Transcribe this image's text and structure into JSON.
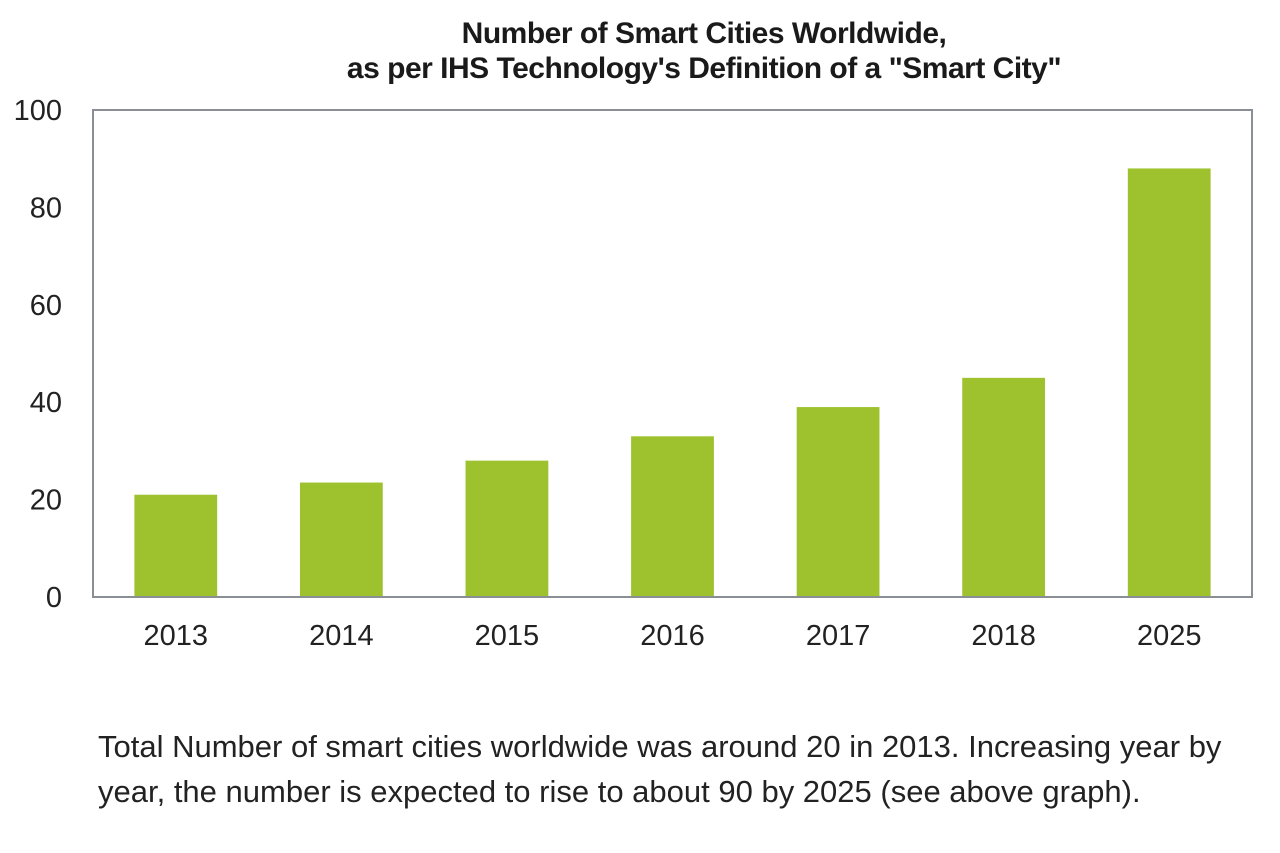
{
  "chart_data": {
    "type": "bar",
    "title": "Number of Smart Cities Worldwide,",
    "subtitle": "as per IHS Technology's Definition of a \"Smart City\"",
    "xlabel": "",
    "ylabel": "",
    "categories": [
      "2013",
      "2014",
      "2015",
      "2016",
      "2017",
      "2018",
      "2025"
    ],
    "values": [
      21,
      23.5,
      28,
      33,
      39,
      45,
      88
    ],
    "ylim": [
      0,
      100
    ],
    "yticks": [
      0,
      20,
      40,
      60,
      80,
      100
    ],
    "grid": false,
    "legend": "none",
    "bar_color": "#9dc22d",
    "axis_color": "#8a8f95"
  },
  "caption": "Total Number of smart cities worldwide was around 20 in 2013. Increasing year by year, the number is expected to rise to about 90 by 2025 (see above graph)."
}
